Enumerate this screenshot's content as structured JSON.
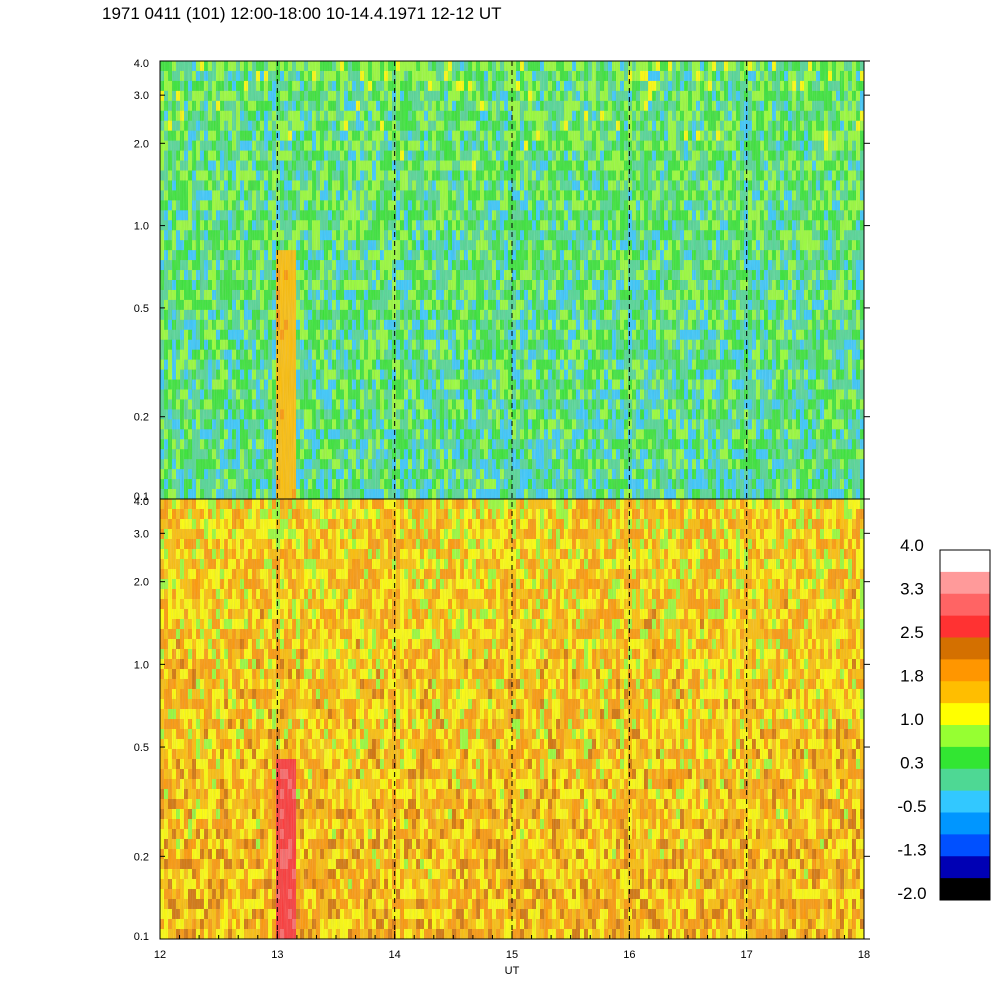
{
  "title": "1971 0411 (101) 12:00-18:00 10-14.4.1971  12-12 UT",
  "chart_data": {
    "type": "heatmap",
    "title": "1971 0411 (101) 12:00-18:00 10-14.4.1971  12-12 UT",
    "xlabel": "UT",
    "xlim": [
      12,
      18
    ],
    "x_ticks": [
      "12",
      "13",
      "14",
      "15",
      "16",
      "17",
      "18"
    ],
    "x_tick_values": [
      12,
      13,
      14,
      15,
      16,
      17,
      18
    ],
    "day_boundaries_dashed": [
      13,
      14,
      15,
      16,
      17
    ],
    "yscale": "log",
    "panels": [
      {
        "name": "upper",
        "ylim": [
          0.1,
          4.0
        ],
        "y_ticks": [
          "0.1",
          "0.2",
          "0.5",
          "1.0",
          "2.0",
          "3.0",
          "4.0"
        ],
        "y_tick_values": [
          0.1,
          0.2,
          0.5,
          1.0,
          2.0,
          3.0,
          4.0
        ],
        "dominant_levels": [
          0.0,
          0.6
        ],
        "feature": {
          "x_range": [
            13.0,
            13.15
          ],
          "y_range": [
            0.1,
            0.8
          ],
          "level": 1.6
        }
      },
      {
        "name": "lower",
        "ylim": [
          0.1,
          4.0
        ],
        "y_ticks": [
          "0.1",
          "0.2",
          "0.5",
          "1.0",
          "2.0",
          "3.0",
          "4.0"
        ],
        "y_tick_values": [
          0.1,
          0.2,
          0.5,
          1.0,
          2.0,
          3.0,
          4.0
        ],
        "dominant_levels": [
          1.3,
          1.8
        ],
        "feature": {
          "x_range": [
            13.0,
            13.15
          ],
          "y_range": [
            0.1,
            0.45
          ],
          "level": 2.8
        }
      }
    ],
    "colorbar": {
      "ticks": [
        "4.0",
        "3.3",
        "2.5",
        "1.8",
        "1.0",
        "0.3",
        "-0.5",
        "-1.3",
        "-2.0"
      ],
      "tick_values": [
        4.0,
        3.3,
        2.5,
        1.8,
        1.0,
        0.3,
        -0.5,
        -1.3,
        -2.0
      ],
      "colors_top_to_bottom": [
        "#ffffff",
        "#ff9a9a",
        "#ff6464",
        "#ff3232",
        "#d47000",
        "#ff9600",
        "#ffbe00",
        "#ffff00",
        "#96ff32",
        "#32e632",
        "#4ed894",
        "#32c8ff",
        "#0096ff",
        "#0050ff",
        "#0000b4",
        "#000000"
      ]
    }
  }
}
